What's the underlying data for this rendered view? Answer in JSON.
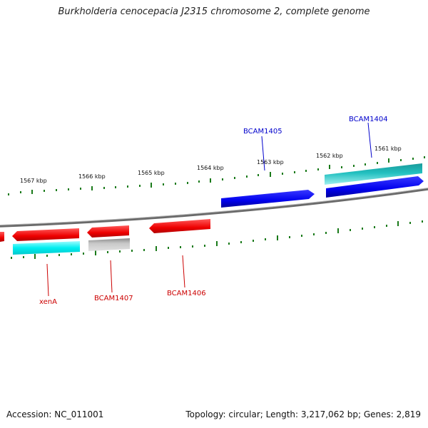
{
  "title": "Burkholderia cenocepacia J2315 chromosome 2, complete genome",
  "footer": {
    "accession": "Accession: NC_011001",
    "summary": "Topology: circular; Length: 3,217,062 bp; Genes: 2,819"
  },
  "colors": {
    "forward_gene": "#0000ee",
    "reverse_gene": "#ee0000",
    "cyan_feature": "#00e5ee",
    "teal_feature": "#22b5b5",
    "pseudo_gene": "#b0b0b0",
    "tick": "#1a7a1a",
    "backbone": "#7a7a7a"
  },
  "scale_labels": [
    "1567 kbp",
    "1566 kbp",
    "1565 kbp",
    "1564 kbp",
    "1563 kbp",
    "1562 kbp",
    "1561 kbp"
  ],
  "gene_labels": {
    "bcam1405": "BCAM1405",
    "bcam1404": "BCAM1404",
    "xena": "xenA",
    "bcam1407": "BCAM1407",
    "bcam1406": "BCAM1406"
  }
}
